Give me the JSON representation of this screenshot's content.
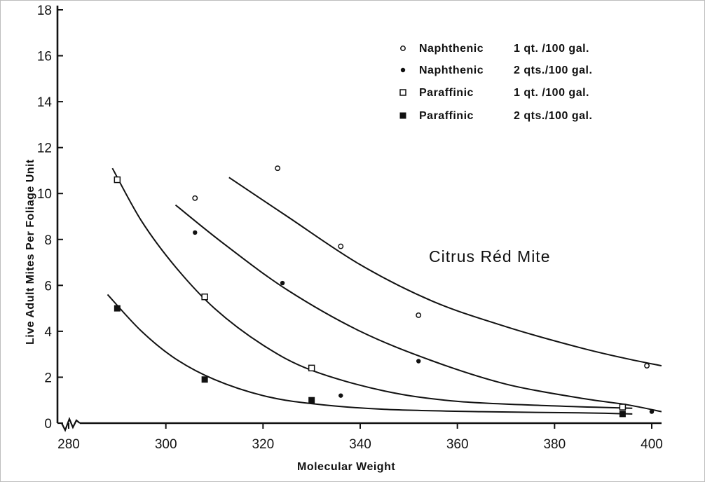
{
  "chart_data": {
    "type": "scatter",
    "title": "",
    "xlabel": "Molecular Weight",
    "ylabel": "Live Adult Mites Per Foliage Unit",
    "xlim": [
      275,
      405
    ],
    "ylim": [
      0,
      18
    ],
    "xticks": [
      280,
      300,
      320,
      340,
      360,
      380,
      400
    ],
    "yticks": [
      0,
      2,
      4,
      6,
      8,
      10,
      12,
      14,
      16,
      18
    ],
    "grid": false,
    "legend_position": "top-right",
    "annotation": "Citrus Réd Mite",
    "series": [
      {
        "name": "Naphthenic",
        "dose": "1 qt. /100 gal.",
        "marker": "open-circle",
        "points": [
          [
            306,
            9.8
          ],
          [
            323,
            11.1
          ],
          [
            336,
            7.7
          ],
          [
            352,
            4.7
          ],
          [
            399,
            2.5
          ]
        ],
        "curve": [
          [
            313,
            10.7
          ],
          [
            325,
            9.0
          ],
          [
            340,
            6.9
          ],
          [
            355,
            5.3
          ],
          [
            370,
            4.2
          ],
          [
            385,
            3.3
          ],
          [
            395,
            2.8
          ],
          [
            402,
            2.5
          ]
        ]
      },
      {
        "name": "Naphthenic",
        "dose": "2 qts./100 gal.",
        "marker": "filled-circle",
        "points": [
          [
            306,
            8.3
          ],
          [
            324,
            6.1
          ],
          [
            336,
            1.2
          ],
          [
            352,
            2.7
          ],
          [
            400,
            0.5
          ]
        ],
        "curve": [
          [
            302,
            9.5
          ],
          [
            312,
            7.8
          ],
          [
            325,
            5.8
          ],
          [
            340,
            4.0
          ],
          [
            355,
            2.7
          ],
          [
            370,
            1.7
          ],
          [
            385,
            1.1
          ],
          [
            395,
            0.8
          ],
          [
            402,
            0.5
          ]
        ]
      },
      {
        "name": "Paraffinic",
        "dose": "1 qt. /100 gal.",
        "marker": "open-square",
        "points": [
          [
            290,
            10.6
          ],
          [
            308,
            5.5
          ],
          [
            330,
            2.4
          ],
          [
            394,
            0.7
          ]
        ],
        "curve": [
          [
            289,
            11.1
          ],
          [
            295,
            8.8
          ],
          [
            302,
            6.8
          ],
          [
            310,
            5.0
          ],
          [
            320,
            3.4
          ],
          [
            330,
            2.3
          ],
          [
            345,
            1.4
          ],
          [
            360,
            0.95
          ],
          [
            380,
            0.75
          ],
          [
            396,
            0.65
          ]
        ]
      },
      {
        "name": "Paraffinic",
        "dose": "2 qts./100 gal.",
        "marker": "filled-square",
        "points": [
          [
            290,
            5.0
          ],
          [
            308,
            1.9
          ],
          [
            330,
            1.0
          ],
          [
            394,
            0.4
          ]
        ],
        "curve": [
          [
            288,
            5.6
          ],
          [
            295,
            4.0
          ],
          [
            302,
            2.8
          ],
          [
            310,
            1.9
          ],
          [
            320,
            1.2
          ],
          [
            330,
            0.85
          ],
          [
            345,
            0.6
          ],
          [
            365,
            0.5
          ],
          [
            385,
            0.45
          ],
          [
            396,
            0.4
          ]
        ]
      }
    ]
  }
}
